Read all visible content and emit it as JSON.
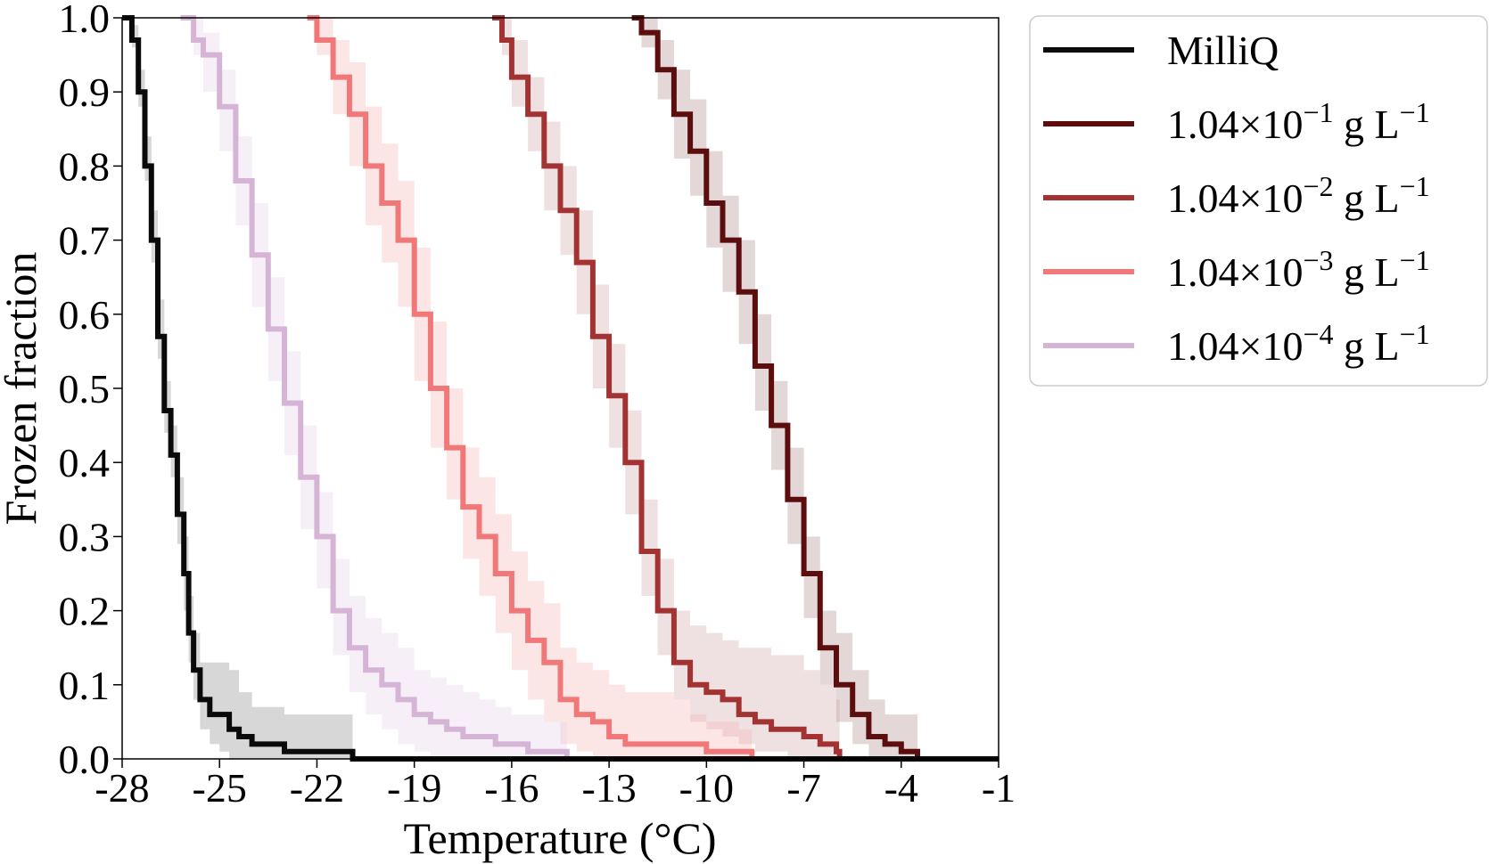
{
  "chart_data": {
    "type": "line",
    "title": "",
    "xlabel": "Temperature (°C)",
    "ylabel": "Frozen fraction",
    "xlim": [
      -28,
      -1
    ],
    "ylim": [
      0,
      1.0
    ],
    "x_ticks": [
      "-28",
      "-25",
      "-22",
      "-19",
      "-16",
      "-13",
      "-10",
      "-7",
      "-4",
      "-1"
    ],
    "y_ticks": [
      "0.0",
      "0.1",
      "0.2",
      "0.3",
      "0.4",
      "0.5",
      "0.6",
      "0.7",
      "0.8",
      "0.9",
      "1.0"
    ],
    "grid": false,
    "legend_position": "outside-upper-right",
    "series": [
      {
        "name": "MilliQ",
        "legend_parts": {
          "base": "MilliQ",
          "exp": "",
          "unit": "",
          "unit_exp": ""
        },
        "color": "#0a0a0a",
        "band_color": "#bdbdbd",
        "band_opacity": 0.6,
        "x": [
          -28.0,
          -27.7,
          -27.5,
          -27.3,
          -27.1,
          -26.9,
          -26.7,
          -26.5,
          -26.3,
          -26.1,
          -25.95,
          -25.8,
          -25.6,
          -25.3,
          -25.0,
          -24.7,
          -24.4,
          -24.0,
          -23.0,
          -22.0,
          -21.0,
          -20.9,
          -1.0
        ],
        "y": [
          1.0,
          0.97,
          0.9,
          0.8,
          0.7,
          0.57,
          0.47,
          0.41,
          0.33,
          0.25,
          0.17,
          0.12,
          0.08,
          0.06,
          0.06,
          0.04,
          0.03,
          0.02,
          0.01,
          0.01,
          0.01,
          0.0,
          0.0
        ],
        "lower": [
          1.0,
          0.96,
          0.88,
          0.78,
          0.67,
          0.54,
          0.44,
          0.38,
          0.29,
          0.2,
          0.13,
          0.08,
          0.04,
          0.02,
          0.01,
          0.0,
          0.0,
          0.0,
          0.0,
          0.0,
          0.0,
          0.0,
          0.0
        ],
        "upper": [
          1.0,
          0.99,
          0.93,
          0.84,
          0.74,
          0.62,
          0.51,
          0.45,
          0.38,
          0.3,
          0.22,
          0.17,
          0.13,
          0.13,
          0.13,
          0.12,
          0.09,
          0.07,
          0.06,
          0.06,
          0.06,
          0.0,
          0.0
        ]
      },
      {
        "name": "1.04×10−1 g L−1",
        "legend_parts": {
          "base": "1.04×10",
          "exp": "−1",
          "unit": " g L",
          "unit_exp": "−1"
        },
        "color": "#5c0e0e",
        "band_color": "#b08c8c",
        "band_opacity": 0.35,
        "x": [
          -12.3,
          -12.0,
          -11.5,
          -11.0,
          -10.5,
          -10.0,
          -9.5,
          -9.0,
          -8.5,
          -8.0,
          -7.5,
          -7.0,
          -6.5,
          -6.0,
          -5.5,
          -5.0,
          -4.5,
          -4.0,
          -3.6,
          -3.5,
          -1.0
        ],
        "y": [
          1.0,
          0.98,
          0.93,
          0.87,
          0.82,
          0.75,
          0.7,
          0.63,
          0.53,
          0.45,
          0.35,
          0.25,
          0.15,
          0.1,
          0.06,
          0.03,
          0.02,
          0.01,
          0.01,
          0.0,
          0.0
        ],
        "lower": [
          1.0,
          0.96,
          0.89,
          0.81,
          0.76,
          0.69,
          0.63,
          0.56,
          0.47,
          0.39,
          0.29,
          0.19,
          0.1,
          0.05,
          0.02,
          0.0,
          0.0,
          0.0,
          0.0,
          0.0,
          0.0
        ],
        "upper": [
          1.0,
          1.0,
          0.97,
          0.93,
          0.89,
          0.82,
          0.76,
          0.7,
          0.6,
          0.51,
          0.42,
          0.3,
          0.2,
          0.17,
          0.12,
          0.08,
          0.06,
          0.06,
          0.06,
          0.0,
          0.0
        ]
      },
      {
        "name": "1.04×10−2 g L−1",
        "legend_parts": {
          "base": "1.04×10",
          "exp": "−2",
          "unit": " g L",
          "unit_exp": "−1"
        },
        "color": "#a33333",
        "band_color": "#c99a9a",
        "band_opacity": 0.3,
        "x": [
          -16.6,
          -16.3,
          -16.0,
          -15.5,
          -15.0,
          -14.5,
          -14.0,
          -13.5,
          -13.0,
          -12.5,
          -12.0,
          -11.5,
          -11.0,
          -10.5,
          -10.0,
          -9.5,
          -9.0,
          -8.5,
          -8.0,
          -7.5,
          -7.0,
          -6.5,
          -6.0,
          -5.9,
          -1.0
        ],
        "y": [
          1.0,
          0.97,
          0.92,
          0.87,
          0.8,
          0.74,
          0.67,
          0.57,
          0.49,
          0.4,
          0.28,
          0.2,
          0.13,
          0.1,
          0.09,
          0.08,
          0.06,
          0.05,
          0.04,
          0.04,
          0.03,
          0.02,
          0.01,
          0.0,
          0.0
        ],
        "lower": [
          1.0,
          0.95,
          0.88,
          0.82,
          0.74,
          0.68,
          0.6,
          0.5,
          0.42,
          0.33,
          0.22,
          0.14,
          0.08,
          0.05,
          0.04,
          0.03,
          0.02,
          0.01,
          0.01,
          0.0,
          0.0,
          0.0,
          0.0,
          0.0,
          0.0
        ],
        "upper": [
          1.0,
          1.0,
          0.97,
          0.92,
          0.86,
          0.8,
          0.74,
          0.64,
          0.56,
          0.47,
          0.35,
          0.27,
          0.2,
          0.18,
          0.17,
          0.16,
          0.15,
          0.15,
          0.14,
          0.14,
          0.12,
          0.1,
          0.08,
          0.0,
          0.0
        ]
      },
      {
        "name": "1.04×10−3 g L−1",
        "legend_parts": {
          "base": "1.04×10",
          "exp": "−3",
          "unit": " g L",
          "unit_exp": "−1"
        },
        "color": "#f07878",
        "band_color": "#f7b5b5",
        "band_opacity": 0.35,
        "x": [
          -22.3,
          -22.0,
          -21.5,
          -21.0,
          -20.5,
          -20.0,
          -19.5,
          -19.0,
          -18.5,
          -18.0,
          -17.5,
          -17.0,
          -16.5,
          -16.0,
          -15.5,
          -15.0,
          -14.5,
          -14.0,
          -13.5,
          -13.0,
          -12.5,
          -12.0,
          -11.5,
          -11.0,
          -10.5,
          -10.0,
          -9.0,
          -8.6,
          -1.0
        ],
        "y": [
          1.0,
          0.97,
          0.92,
          0.87,
          0.8,
          0.75,
          0.7,
          0.6,
          0.5,
          0.42,
          0.34,
          0.3,
          0.25,
          0.2,
          0.16,
          0.13,
          0.08,
          0.06,
          0.05,
          0.03,
          0.02,
          0.02,
          0.02,
          0.02,
          0.02,
          0.01,
          0.01,
          0.0,
          0.0
        ],
        "lower": [
          1.0,
          0.95,
          0.87,
          0.8,
          0.72,
          0.67,
          0.61,
          0.51,
          0.42,
          0.35,
          0.27,
          0.22,
          0.17,
          0.12,
          0.08,
          0.05,
          0.02,
          0.01,
          0.0,
          0.0,
          0.0,
          0.0,
          0.0,
          0.0,
          0.0,
          0.0,
          0.0,
          0.0,
          0.0
        ],
        "upper": [
          1.0,
          1.0,
          0.97,
          0.94,
          0.88,
          0.83,
          0.78,
          0.69,
          0.59,
          0.5,
          0.42,
          0.38,
          0.33,
          0.28,
          0.24,
          0.21,
          0.15,
          0.13,
          0.12,
          0.1,
          0.09,
          0.09,
          0.09,
          0.08,
          0.06,
          0.05,
          0.04,
          0.0,
          0.0
        ]
      },
      {
        "name": "1.04×10−4 g L−1",
        "legend_parts": {
          "base": "1.04×10",
          "exp": "−4",
          "unit": " g L",
          "unit_exp": "−1"
        },
        "color": "#d6b4d6",
        "band_color": "#e8d8ec",
        "band_opacity": 0.4,
        "x": [
          -26.2,
          -25.8,
          -25.5,
          -25.0,
          -24.5,
          -24.0,
          -23.5,
          -23.0,
          -22.5,
          -22.0,
          -21.5,
          -21.0,
          -20.5,
          -20.0,
          -19.5,
          -19.0,
          -18.5,
          -18.0,
          -17.5,
          -17.0,
          -16.5,
          -16.0,
          -15.5,
          -15.0,
          -14.5,
          -14.3,
          -1.0
        ],
        "y": [
          1.0,
          0.97,
          0.95,
          0.88,
          0.78,
          0.68,
          0.58,
          0.48,
          0.38,
          0.3,
          0.2,
          0.15,
          0.12,
          0.1,
          0.08,
          0.06,
          0.05,
          0.04,
          0.03,
          0.03,
          0.02,
          0.02,
          0.01,
          0.01,
          0.01,
          0.0,
          0.0
        ],
        "lower": [
          1.0,
          0.95,
          0.9,
          0.82,
          0.72,
          0.61,
          0.51,
          0.41,
          0.31,
          0.23,
          0.14,
          0.09,
          0.06,
          0.04,
          0.02,
          0.01,
          0.0,
          0.0,
          0.0,
          0.0,
          0.0,
          0.0,
          0.0,
          0.0,
          0.0,
          0.0,
          0.0
        ],
        "upper": [
          1.0,
          1.0,
          0.98,
          0.93,
          0.84,
          0.75,
          0.65,
          0.55,
          0.45,
          0.36,
          0.27,
          0.22,
          0.19,
          0.17,
          0.15,
          0.12,
          0.11,
          0.1,
          0.09,
          0.08,
          0.07,
          0.06,
          0.06,
          0.05,
          0.05,
          0.0,
          0.0
        ]
      }
    ]
  }
}
